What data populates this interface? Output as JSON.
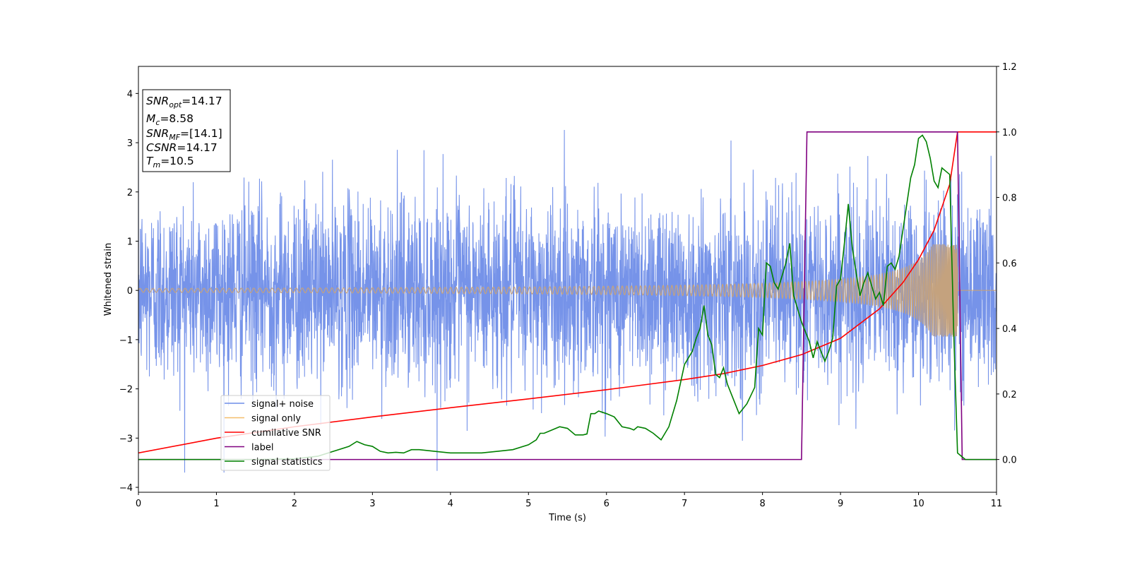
{
  "chart_data": {
    "type": "line",
    "xlabel": "Time (s)",
    "ylabel": "Whitened strain",
    "xlim": [
      0,
      11
    ],
    "ylim_left": [
      -4.1,
      4.55
    ],
    "ylim_right": [
      -0.1,
      1.2
    ],
    "xticks": [
      "0",
      "1",
      "2",
      "3",
      "4",
      "5",
      "6",
      "7",
      "8",
      "9",
      "10",
      "11"
    ],
    "yticks_left": [
      "−4",
      "−3",
      "−2",
      "−1",
      "0",
      "1",
      "2",
      "3",
      "4"
    ],
    "yticks_right": [
      "0.0",
      "0.2",
      "0.4",
      "0.6",
      "0.8",
      "1.0",
      "1.2"
    ],
    "grid": false,
    "legend_placement": "lower-left",
    "colors": {
      "signal_noise": "#6f8de8",
      "signal_only": "#f5be6b",
      "cumulative_snr": "#ff0000",
      "label": "#800080",
      "signal_statistics": "#008000",
      "overlap": "#c4a27e"
    },
    "info_box": {
      "snr_opt": {
        "base": "SNR",
        "sub": "opt",
        "value": "=14.17"
      },
      "mc": {
        "base": "M",
        "sub": "c",
        "value": "=8.58"
      },
      "snr_mf": {
        "base": "SNR",
        "sub": "MF",
        "value": "=[14.1]"
      },
      "csnr": {
        "base": "CSNR",
        "value": "=14.17"
      },
      "tm": {
        "base": "T",
        "sub": "m",
        "value": "=10.5"
      }
    },
    "series": [
      {
        "name": "signal+ noise",
        "axis": "left",
        "sigma": 0.95,
        "x_range": [
          0,
          11
        ]
      },
      {
        "name": "signal only",
        "axis": "left",
        "amp_start": 0.04,
        "amp_end": 1.3,
        "t_merger": 10.5
      },
      {
        "name": "cumilative SNR",
        "axis": "right",
        "x": [
          0,
          1,
          2,
          3,
          4,
          5,
          6,
          7,
          7.5,
          8,
          8.5,
          9,
          9.5,
          9.8,
          10,
          10.2,
          10.4,
          10.5,
          10.51,
          11
        ],
        "y": [
          0.02,
          0.065,
          0.1,
          0.13,
          0.158,
          0.185,
          0.213,
          0.244,
          0.262,
          0.287,
          0.32,
          0.37,
          0.46,
          0.54,
          0.61,
          0.7,
          0.84,
          1.0,
          1.0,
          1.0
        ]
      },
      {
        "name": "label",
        "axis": "right",
        "x": [
          0,
          8.5,
          8.57,
          10.5,
          10.56,
          11
        ],
        "y": [
          0,
          0,
          1,
          1,
          0,
          0
        ]
      },
      {
        "name": "signal statistics",
        "axis": "right",
        "x": [
          0,
          0.5,
          1,
          1.5,
          2,
          2.3,
          2.5,
          2.7,
          2.8,
          2.9,
          3.0,
          3.1,
          3.2,
          3.3,
          3.4,
          3.5,
          3.6,
          3.8,
          4.0,
          4.2,
          4.4,
          4.6,
          4.8,
          5.0,
          5.1,
          5.15,
          5.2,
          5.3,
          5.4,
          5.5,
          5.6,
          5.7,
          5.75,
          5.8,
          5.85,
          5.9,
          6.0,
          6.1,
          6.2,
          6.3,
          6.35,
          6.4,
          6.5,
          6.6,
          6.7,
          6.8,
          6.9,
          7.0,
          7.1,
          7.15,
          7.2,
          7.25,
          7.3,
          7.35,
          7.4,
          7.45,
          7.5,
          7.55,
          7.6,
          7.7,
          7.8,
          7.9,
          7.95,
          8.0,
          8.05,
          8.1,
          8.15,
          8.2,
          8.25,
          8.3,
          8.35,
          8.4,
          8.45,
          8.5,
          8.55,
          8.6,
          8.65,
          8.7,
          8.75,
          8.8,
          8.85,
          8.9,
          8.95,
          9.0,
          9.05,
          9.1,
          9.15,
          9.2,
          9.25,
          9.3,
          9.35,
          9.4,
          9.45,
          9.5,
          9.55,
          9.6,
          9.65,
          9.7,
          9.75,
          9.8,
          9.85,
          9.9,
          9.95,
          10.0,
          10.05,
          10.1,
          10.15,
          10.2,
          10.25,
          10.3,
          10.35,
          10.4,
          10.45,
          10.5,
          10.55,
          10.6,
          11
        ],
        "y": [
          0,
          0,
          0,
          0,
          0.002,
          0.01,
          0.025,
          0.04,
          0.055,
          0.045,
          0.04,
          0.025,
          0.02,
          0.022,
          0.02,
          0.03,
          0.03,
          0.025,
          0.02,
          0.02,
          0.02,
          0.025,
          0.03,
          0.045,
          0.06,
          0.08,
          0.08,
          0.09,
          0.1,
          0.095,
          0.075,
          0.075,
          0.078,
          0.14,
          0.14,
          0.148,
          0.14,
          0.13,
          0.1,
          0.095,
          0.09,
          0.1,
          0.095,
          0.08,
          0.06,
          0.1,
          0.18,
          0.29,
          0.33,
          0.37,
          0.4,
          0.47,
          0.38,
          0.35,
          0.26,
          0.25,
          0.28,
          0.23,
          0.2,
          0.14,
          0.17,
          0.22,
          0.4,
          0.38,
          0.6,
          0.59,
          0.54,
          0.52,
          0.56,
          0.6,
          0.66,
          0.5,
          0.46,
          0.42,
          0.39,
          0.36,
          0.31,
          0.36,
          0.33,
          0.3,
          0.33,
          0.37,
          0.53,
          0.55,
          0.66,
          0.78,
          0.65,
          0.57,
          0.5,
          0.54,
          0.57,
          0.53,
          0.49,
          0.51,
          0.47,
          0.59,
          0.6,
          0.58,
          0.62,
          0.7,
          0.78,
          0.86,
          0.9,
          0.98,
          0.99,
          0.97,
          0.92,
          0.85,
          0.83,
          0.89,
          0.88,
          0.87,
          0.4,
          0.02,
          0.01,
          0.0,
          0.0
        ]
      }
    ]
  }
}
